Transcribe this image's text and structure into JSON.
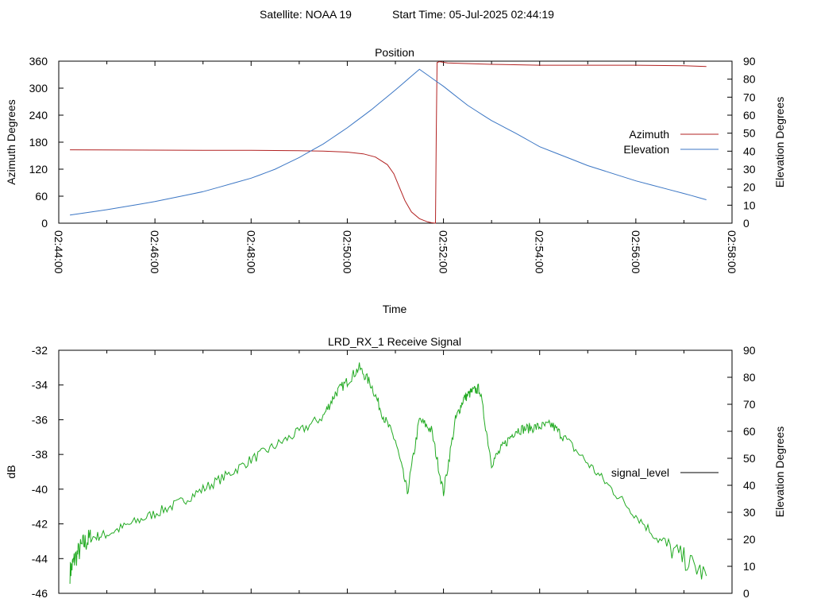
{
  "page": {
    "header_satellite": "Satellite: NOAA 19",
    "header_start": "Start Time: 05-Jul-2025 02:44:19"
  },
  "chart_data": [
    {
      "type": "line",
      "title": "Position",
      "xlabel": "Time",
      "ylabel": "Azimuth Degrees",
      "y2label": "Elevation Degrees",
      "x_ticks": [
        "02:44:00",
        "02:46:00",
        "02:48:00",
        "02:50:00",
        "02:52:00",
        "02:54:00",
        "02:56:00",
        "02:58:00"
      ],
      "xlim": [
        "02:44:00",
        "02:58:00"
      ],
      "ylim": [
        0,
        360
      ],
      "y_ticks": [
        0,
        60,
        120,
        180,
        240,
        300,
        360
      ],
      "y2lim": [
        0,
        90
      ],
      "y2_ticks": [
        0,
        10,
        20,
        30,
        40,
        50,
        60,
        70,
        80,
        90
      ],
      "legend_position": "right",
      "series": [
        {
          "name": "Azimuth",
          "axis": "y",
          "color": "#b22222",
          "x": [
            "02:44:14",
            "02:47:00",
            "02:48:00",
            "02:49:00",
            "02:49:30",
            "02:50:00",
            "02:50:20",
            "02:50:35",
            "02:50:50",
            "02:50:58",
            "02:51:05",
            "02:51:12",
            "02:51:20",
            "02:51:30",
            "02:51:40",
            "02:51:45",
            "02:51:50",
            "02:51:51",
            "02:51:52",
            "02:51:55",
            "02:52:05",
            "02:53:00",
            "02:54:00",
            "02:55:00",
            "02:56:00",
            "02:57:00",
            "02:57:28"
          ],
          "values": [
            163,
            162,
            162,
            161,
            160,
            158,
            154,
            147,
            130,
            110,
            80,
            50,
            25,
            10,
            3,
            1,
            0,
            200,
            357,
            359,
            356,
            353,
            351,
            351,
            351,
            350,
            348
          ]
        },
        {
          "name": "Elevation",
          "axis": "y2",
          "color": "#3b76c4",
          "x": [
            "02:44:14",
            "02:45:00",
            "02:46:00",
            "02:47:00",
            "02:48:00",
            "02:48:30",
            "02:49:00",
            "02:49:30",
            "02:50:00",
            "02:50:30",
            "02:51:00",
            "02:51:30",
            "02:52:00",
            "02:52:30",
            "02:53:00",
            "02:53:30",
            "02:54:00",
            "02:55:00",
            "02:56:00",
            "02:57:00",
            "02:57:28"
          ],
          "values": [
            4.5,
            7.5,
            12,
            17.5,
            25,
            30,
            36.5,
            44,
            53,
            63,
            74,
            85.5,
            76,
            65.5,
            57,
            50,
            42.5,
            32,
            23.5,
            16.5,
            13
          ]
        }
      ]
    },
    {
      "type": "line",
      "title": "LRD_RX_1 Receive Signal",
      "xlabel": "",
      "ylabel": "dB",
      "y2label": "Elevation Degrees",
      "xlim": [
        "02:44:00",
        "02:58:00"
      ],
      "ylim": [
        -46,
        -32
      ],
      "y_ticks": [
        -46,
        -44,
        -42,
        -40,
        -38,
        -36,
        -34,
        -32
      ],
      "y2lim": [
        0,
        90
      ],
      "y2_ticks": [
        0,
        10,
        20,
        30,
        40,
        50,
        60,
        70,
        80,
        90
      ],
      "legend_position": "right",
      "series": [
        {
          "name": "signal_level",
          "color": "#22aa22",
          "legend_color": "#000000",
          "x": [
            "02:44:14",
            "02:44:20",
            "02:44:30",
            "02:44:40",
            "02:45:00",
            "02:45:30",
            "02:46:00",
            "02:46:30",
            "02:47:00",
            "02:47:30",
            "02:48:00",
            "02:48:30",
            "02:49:00",
            "02:49:30",
            "02:49:45",
            "02:50:00",
            "02:50:15",
            "02:50:30",
            "02:50:45",
            "02:51:00",
            "02:51:15",
            "02:51:30",
            "02:51:45",
            "02:52:00",
            "02:52:15",
            "02:52:25",
            "02:52:35",
            "02:52:45",
            "02:53:00",
            "02:53:15",
            "02:53:30",
            "02:53:45",
            "02:54:00",
            "02:54:15",
            "02:54:30",
            "02:55:00",
            "02:55:30",
            "02:56:00",
            "02:56:30",
            "02:57:00",
            "02:57:28"
          ],
          "values": [
            -44.8,
            -44.0,
            -43.2,
            -42.8,
            -42.6,
            -42.0,
            -41.4,
            -40.8,
            -40.0,
            -39.2,
            -38.3,
            -37.5,
            -36.7,
            -35.8,
            -34.5,
            -33.8,
            -33.0,
            -34.0,
            -35.8,
            -37.2,
            -40.2,
            -36.0,
            -36.6,
            -40.2,
            -36.0,
            -34.8,
            -34.4,
            -34.2,
            -38.5,
            -37.5,
            -36.6,
            -36.5,
            -36.4,
            -36.3,
            -37.0,
            -38.5,
            -40.0,
            -41.5,
            -43.0,
            -44.0,
            -45.0
          ]
        }
      ]
    }
  ]
}
